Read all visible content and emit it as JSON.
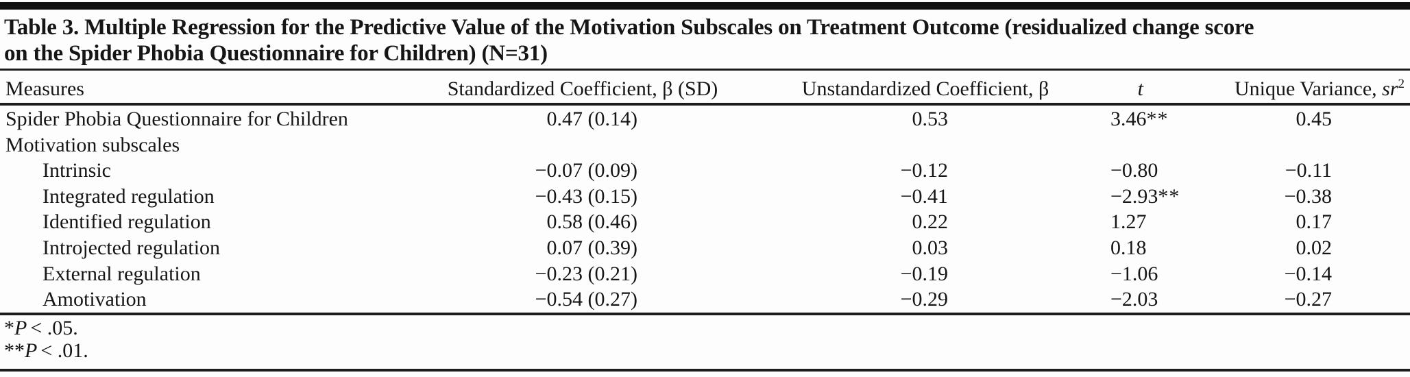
{
  "table": {
    "title_lines": [
      "Table 3. Multiple Regression for the Predictive Value of the Motivation Subscales on Treatment Outcome (residualized change score",
      "on the Spider Phobia Questionnaire for Children) (N=31)"
    ],
    "headers": {
      "measures": "Measures",
      "standardized": "Standardized Coefficient, β (SD)",
      "unstandardized": "Unstandardized Coefficient, β",
      "t": "t",
      "unique_variance_prefix": "Unique Variance, ",
      "unique_variance_symbol": "sr",
      "unique_variance_sup": "2"
    },
    "rows": [
      {
        "label": "Spider Phobia Questionnaire for Children",
        "std": "0.47 (0.14)",
        "unstd": "0.53",
        "t": "3.46",
        "t_stars": "**",
        "sr2": "0.45"
      },
      {
        "label": "Motivation subscales",
        "std": "",
        "unstd": "",
        "t": "",
        "t_stars": "",
        "sr2": ""
      },
      {
        "label": "Intrinsic",
        "std": "−0.07 (0.09)",
        "unstd": "−0.12",
        "t": "−0.80",
        "t_stars": "",
        "sr2": "−0.11"
      },
      {
        "label": "Integrated regulation",
        "std": "−0.43 (0.15)",
        "unstd": "−0.41",
        "t": "−2.93",
        "t_stars": "**",
        "sr2": "−0.38"
      },
      {
        "label": "Identified regulation",
        "std": "0.58 (0.46)",
        "unstd": "0.22",
        "t": "1.27",
        "t_stars": "",
        "sr2": "0.17"
      },
      {
        "label": "Introjected regulation",
        "std": "0.07 (0.39)",
        "unstd": "0.03",
        "t": "0.18",
        "t_stars": "",
        "sr2": "0.02"
      },
      {
        "label": "External regulation",
        "std": "−0.23 (0.21)",
        "unstd": "−0.19",
        "t": "−1.06",
        "t_stars": "",
        "sr2": "−0.14"
      },
      {
        "label": "Amotivation",
        "std": "−0.54 (0.27)",
        "unstd": "−0.29",
        "t": "−2.03",
        "t_stars": "",
        "sr2": "−0.27"
      }
    ],
    "footnotes": [
      {
        "marker": "*",
        "symbol": "P",
        "condition": "< .05."
      },
      {
        "marker": "**",
        "symbol": "P",
        "condition": "< .01."
      }
    ]
  }
}
